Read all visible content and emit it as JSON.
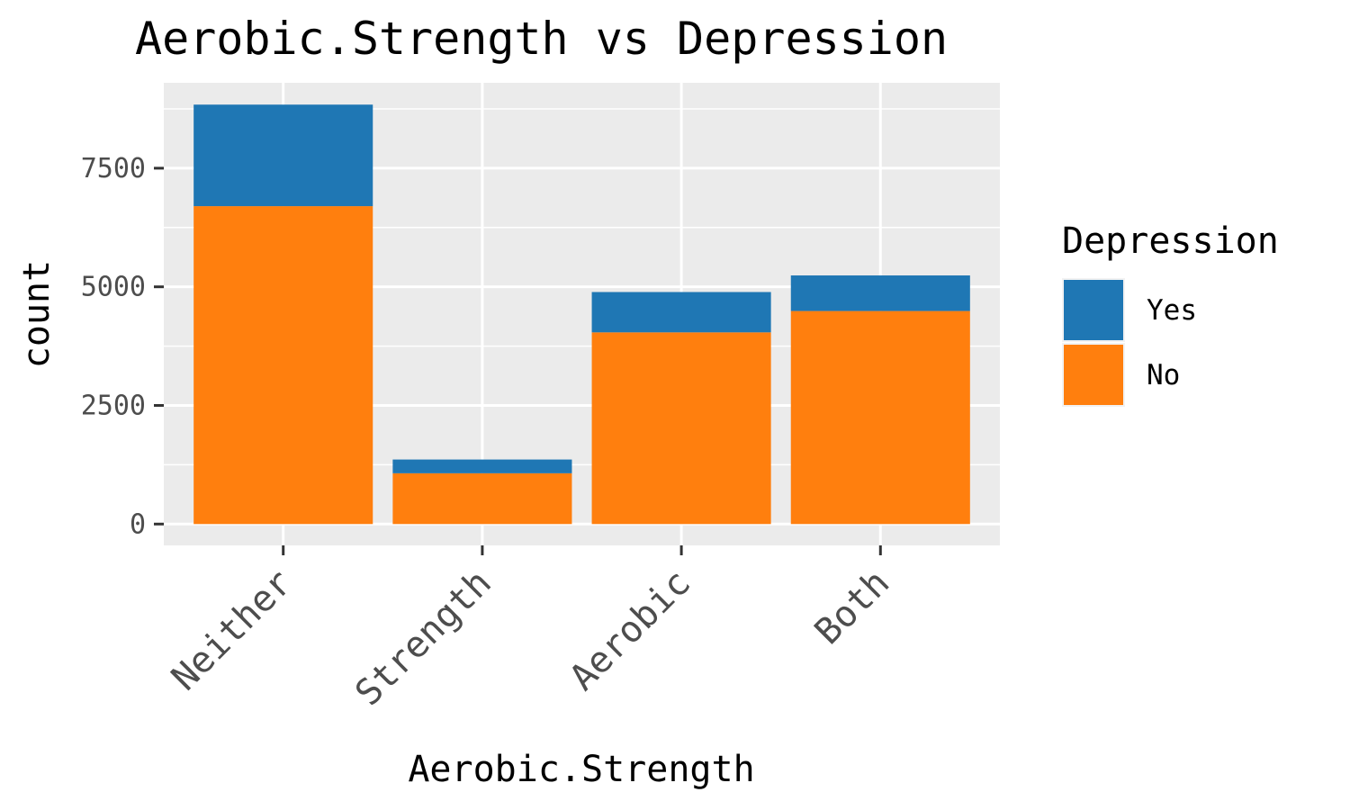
{
  "chart_data": {
    "type": "bar",
    "stacked": true,
    "title": "Aerobic.Strength vs Depression",
    "xlabel": "Aerobic.Strength",
    "ylabel": "count",
    "categories": [
      "Neither",
      "Strength",
      "Aerobic",
      "Both"
    ],
    "series": [
      {
        "name": "No",
        "color": "#ff7f0e",
        "values": [
          6700,
          1070,
          4040,
          4490
        ]
      },
      {
        "name": "Yes",
        "color": "#1f77b4",
        "values": [
          2140,
          290,
          850,
          750
        ]
      }
    ],
    "ylim": [
      -450,
      9300
    ],
    "yticks": [
      0,
      2500,
      5000,
      7500
    ],
    "ytick_labels": [
      "0",
      "2500",
      "5000",
      "7500"
    ],
    "grid": true,
    "legend": {
      "title": "Depression",
      "placement": "right",
      "entries": [
        {
          "label": "Yes",
          "color": "#1f77b4"
        },
        {
          "label": "No",
          "color": "#ff7f0e"
        }
      ]
    }
  }
}
